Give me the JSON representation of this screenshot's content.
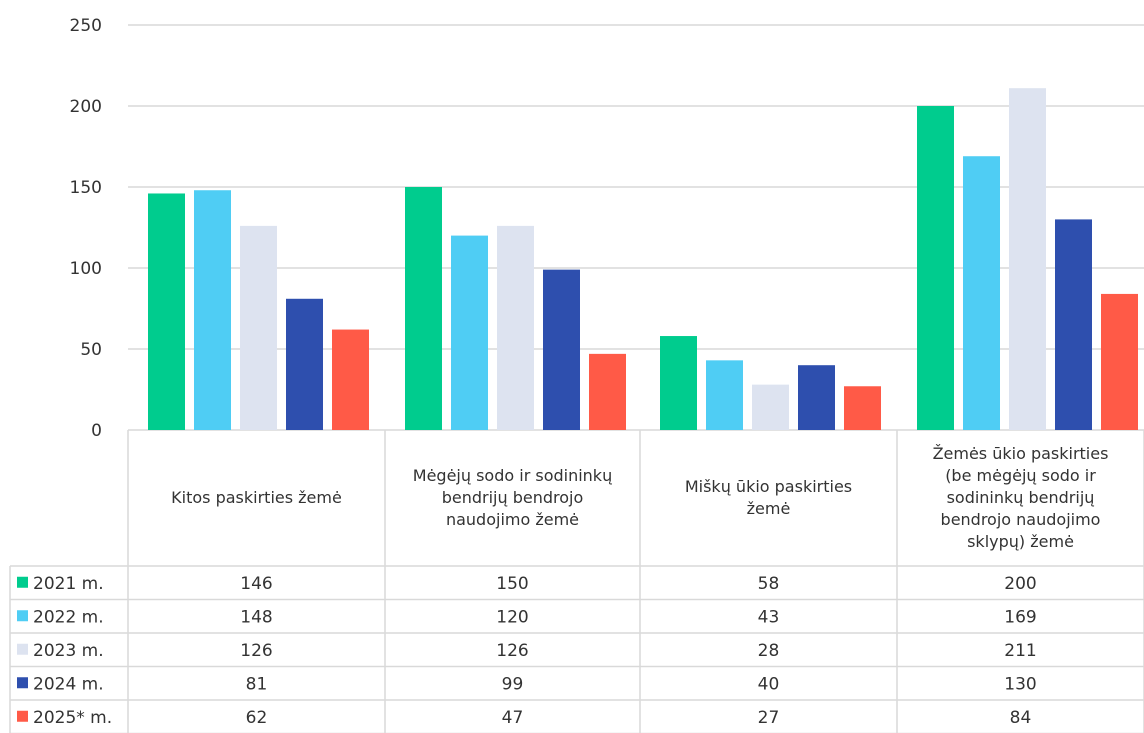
{
  "chart_data": {
    "type": "bar",
    "title": "",
    "xlabel": "",
    "ylabel": "",
    "ylim": [
      0,
      250
    ],
    "yticks": [
      0,
      50,
      100,
      150,
      200,
      250
    ],
    "grid": true,
    "legend_position": "data-table-left",
    "categories": [
      [
        "Kitos paskirties žemė"
      ],
      [
        "Mėgėjų sodo ir sodininkų",
        "bendrijų bendrojo",
        "naudojimo žemė"
      ],
      [
        "Miškų ūkio paskirties",
        "žemė"
      ],
      [
        "Žemės ūkio paskirties",
        "(be mėgėjų sodo ir",
        "sodininkų bendrijų",
        "bendrojo naudojimo",
        "sklypų) žemė"
      ]
    ],
    "series": [
      {
        "name": "2021 m.",
        "color": "#00CC8E",
        "values": [
          146,
          150,
          58,
          200
        ]
      },
      {
        "name": "2022 m.",
        "color": "#4FCDF4",
        "values": [
          148,
          120,
          43,
          169
        ]
      },
      {
        "name": "2023 m.",
        "color": "#DDE3F0",
        "values": [
          126,
          126,
          28,
          211
        ]
      },
      {
        "name": "2024 m.",
        "color": "#2E4FAE",
        "values": [
          81,
          99,
          40,
          130
        ]
      },
      {
        "name": "2025* m.",
        "color": "#FF5A47",
        "values": [
          62,
          47,
          27,
          84
        ]
      }
    ]
  }
}
